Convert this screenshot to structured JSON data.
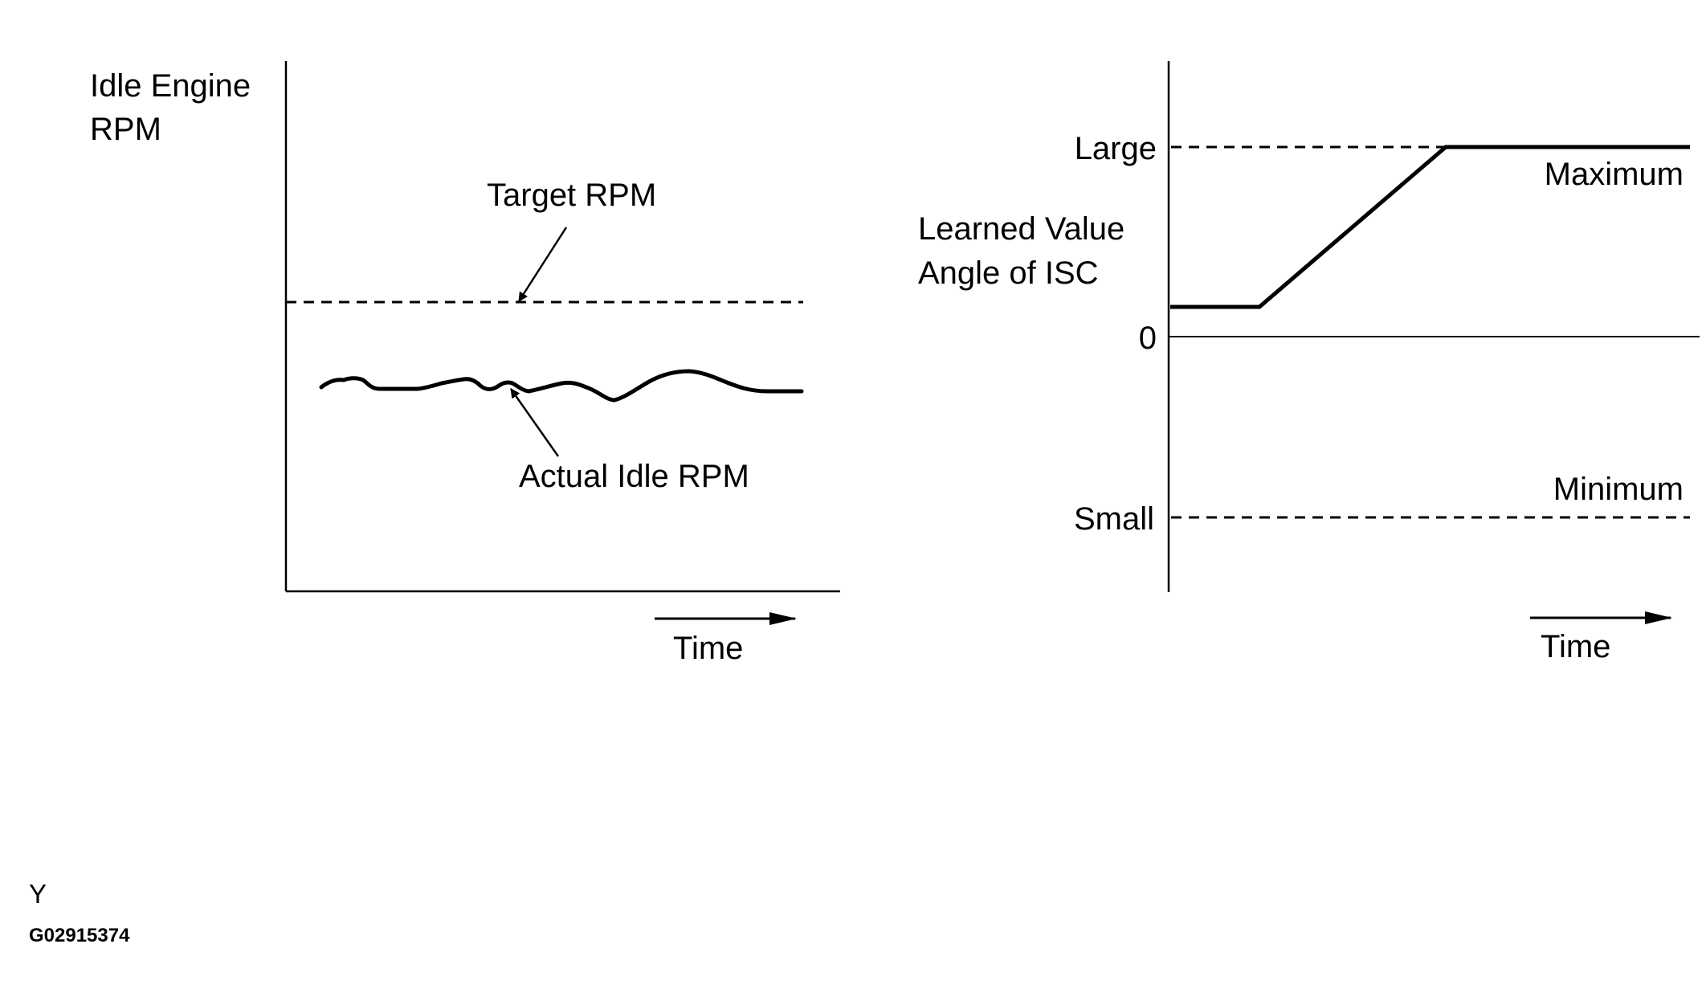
{
  "left_chart": {
    "y_label_line1": "Idle Engine",
    "y_label_line2": "RPM",
    "target_label": "Target RPM",
    "actual_label": "Actual Idle RPM",
    "x_label": "Time"
  },
  "right_chart": {
    "y_label_line1": "Learned Value",
    "y_label_line2": "Angle of ISC",
    "tick_large": "Large",
    "tick_zero": "0",
    "tick_small": "Small",
    "max_label": "Maximum",
    "min_label": "Minimum",
    "x_label": "Time"
  },
  "footer": {
    "code_letter": "Y",
    "figure_id": "G02915374"
  }
}
